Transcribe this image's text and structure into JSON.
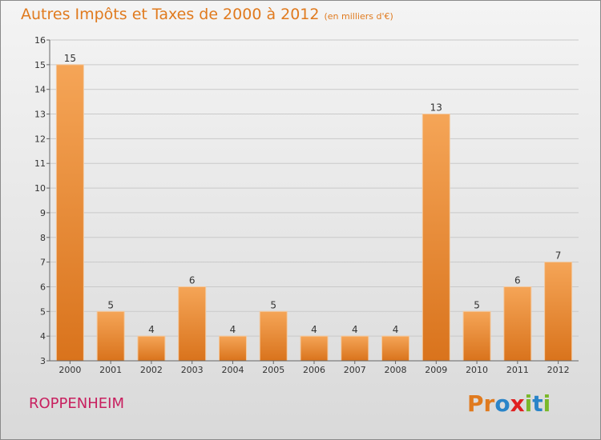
{
  "header": {
    "title": "Autres Impôts et Taxes de 2000 à 2012",
    "subtitle": "(en milliers d'€)"
  },
  "footer": {
    "town": "ROPPENHEIM",
    "logo_text": "Proxiti"
  },
  "colors": {
    "title": "#e07a1e",
    "town": "#c8205f",
    "bar_top": "#f5a557",
    "bar_bottom": "#d9731c",
    "logo": [
      "#e07a1e",
      "#e07a1e",
      "#2a84c8",
      "#e02020",
      "#7ab82a",
      "#2a84c8",
      "#7ab82a"
    ]
  },
  "chart_data": {
    "type": "bar",
    "categories": [
      "2000",
      "2001",
      "2002",
      "2003",
      "2004",
      "2005",
      "2006",
      "2007",
      "2008",
      "2009",
      "2010",
      "2011",
      "2012"
    ],
    "values": [
      15,
      5,
      4,
      6,
      4,
      5,
      4,
      4,
      4,
      13,
      5,
      6,
      7
    ],
    "ylim": [
      3,
      16
    ],
    "yticks": [
      3,
      4,
      5,
      6,
      7,
      8,
      9,
      10,
      11,
      12,
      13,
      14,
      15,
      16
    ],
    "grid": true
  }
}
